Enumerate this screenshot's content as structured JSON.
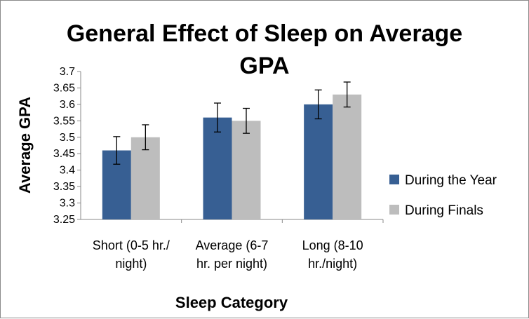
{
  "chart_data": {
    "type": "bar",
    "title": "General Effect of Sleep on Average GPA",
    "xlabel": "Sleep Category",
    "ylabel": "Average GPA",
    "ylim": [
      3.25,
      3.7
    ],
    "yticks": [
      "3.25",
      "3.3",
      "3.35",
      "3.4",
      "3.45",
      "3.5",
      "3.55",
      "3.6",
      "3.65",
      "3.7"
    ],
    "categories": [
      [
        "Short (0-5 hr./",
        "night)"
      ],
      [
        "Average (6-7",
        "hr. per night)"
      ],
      [
        "Long (8-10",
        "hr./night)"
      ]
    ],
    "series": [
      {
        "name": "During the Year",
        "color": "#375f93",
        "values": [
          3.46,
          3.56,
          3.6
        ],
        "errors": [
          0.042,
          0.044,
          0.044
        ]
      },
      {
        "name": "During Finals",
        "color": "#bdbdbd",
        "values": [
          3.5,
          3.55,
          3.63
        ],
        "errors": [
          0.038,
          0.038,
          0.038
        ]
      }
    ],
    "grid": false,
    "legend_position": "right"
  }
}
